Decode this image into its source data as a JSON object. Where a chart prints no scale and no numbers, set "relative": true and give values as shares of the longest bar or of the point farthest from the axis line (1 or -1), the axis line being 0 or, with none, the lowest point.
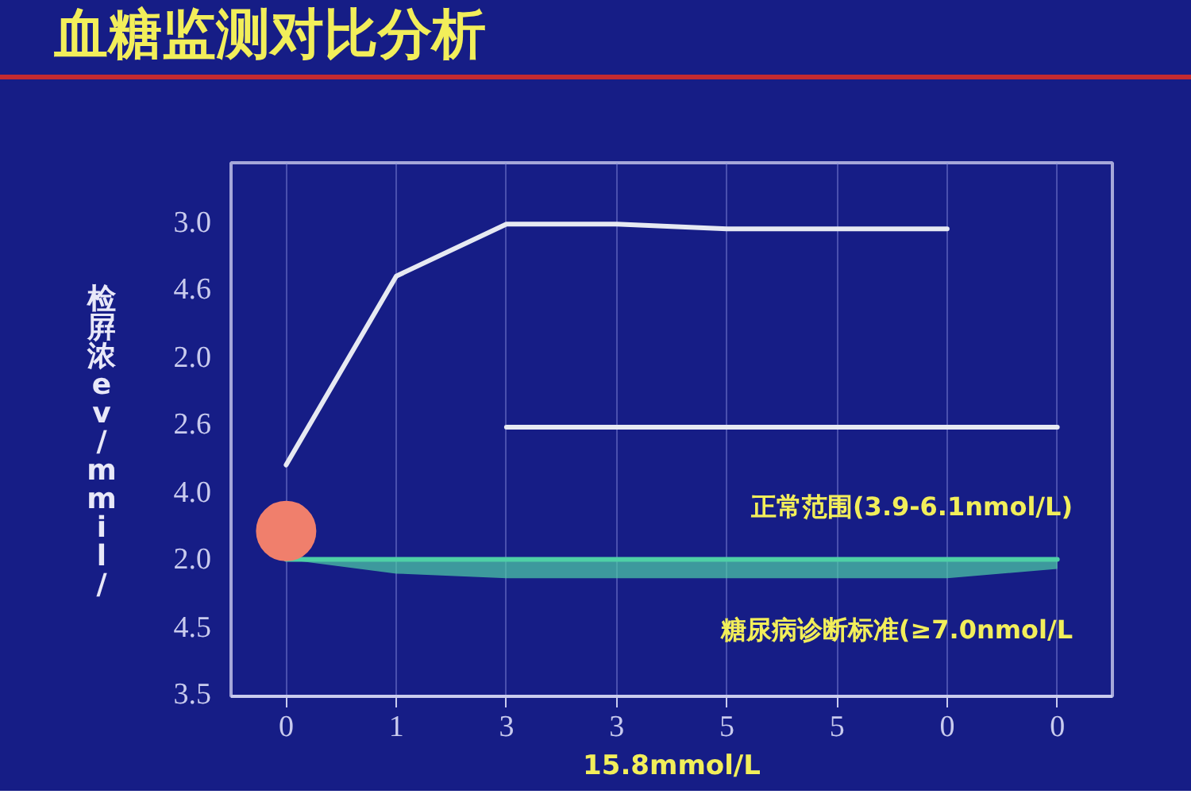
{
  "chart_data": {
    "type": "line",
    "title": "血糖监测对比分析",
    "xlabel": "15.8mmol/L",
    "ylabel": "检屛浓ev/mmil/",
    "categories": [
      "0",
      "1",
      "3",
      "3",
      "5",
      "5",
      "0",
      "0"
    ],
    "relative": true,
    "grid": "x",
    "line_style": "solid",
    "series": [
      {
        "color": "#e6e9f2",
        "values": [
          0.49,
          0.89,
          1.0,
          1.0,
          0.99,
          0.99,
          0.99,
          null
        ]
      },
      {
        "color": "#e6e9f2",
        "values": [
          null,
          null,
          0.57,
          0.57,
          0.57,
          0.57,
          0.57,
          0.57
        ]
      },
      {
        "color": "#4ecfa6",
        "values": [
          0.29,
          0.29,
          0.29,
          0.29,
          0.29,
          0.29,
          0.29,
          0.29
        ],
        "lower": [
          0.29,
          0.26,
          0.25,
          0.25,
          0.25,
          0.25,
          0.25,
          0.27
        ],
        "upper": [
          0.29,
          0.29,
          0.29,
          0.29,
          0.29,
          0.29,
          0.29,
          0.29
        ]
      },
      {
        "type": "scatter",
        "marker": "circle",
        "color": "#f07f6c",
        "values": [
          0.35,
          null,
          null,
          null,
          null,
          null,
          null,
          null
        ]
      }
    ],
    "annotations": [
      "正常范围(3.9-6.1nmol/L)",
      "糖尿病诊断标准(≥7.0nmol/L",
      "3.0",
      "4.6",
      "2.0",
      "2.6",
      "4.0",
      "2.0",
      "4.5",
      "3.5"
    ]
  }
}
